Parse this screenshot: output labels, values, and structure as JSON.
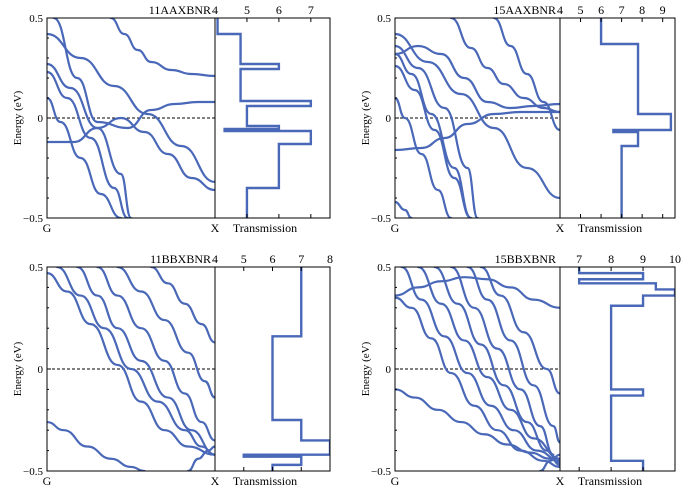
{
  "figure": {
    "line_color": "#4a68b8",
    "axis_color": "#000000",
    "fermi_line_color": "#000000"
  },
  "chart_data": [
    {
      "type": "line",
      "title": "11AAXBNR",
      "ylabel": "Energy (eV)",
      "ylim": [
        -0.5,
        0.5
      ],
      "yticks": [
        "0.5",
        "0",
        "−0.5"
      ],
      "fermi_level": 0,
      "band": {
        "x_start_label": "G",
        "x_end_label": "X",
        "xlim": [
          0,
          1
        ],
        "series": [
          {
            "x": [
              0,
              0.2,
              0.4,
              0.6,
              0.8,
              1
            ],
            "y": [
              0.42,
              0.3,
              0.16,
              0.02,
              -0.14,
              -0.32
            ]
          },
          {
            "x": [
              0.04,
              0.18,
              0.3,
              0.48,
              0.62,
              0.76,
              0.9,
              1
            ],
            "y": [
              0.5,
              0.2,
              -0.02,
              -0.05,
              0.04,
              0.07,
              0.08,
              0.08
            ]
          },
          {
            "x": [
              0.0,
              0.16,
              0.3,
              0.44,
              0.58,
              0.72,
              0.86,
              1
            ],
            "y": [
              -0.12,
              -0.12,
              -0.05,
              0.0,
              -0.07,
              -0.18,
              -0.3,
              -0.36
            ]
          },
          {
            "x": [
              0,
              0.14,
              0.3,
              0.44,
              0.5
            ],
            "y": [
              0.27,
              0.15,
              -0.05,
              -0.28,
              -0.5
            ]
          },
          {
            "x": [
              0,
              0.12,
              0.26,
              0.4,
              0.48
            ],
            "y": [
              0.23,
              0.1,
              -0.1,
              -0.35,
              -0.5
            ]
          },
          {
            "x": [
              0,
              0.08,
              0.2,
              0.32,
              0.44
            ],
            "y": [
              0.1,
              -0.02,
              -0.2,
              -0.38,
              -0.5
            ]
          },
          {
            "x": [
              0.38,
              0.46,
              0.54,
              0.62,
              0.74,
              0.86,
              1
            ],
            "y": [
              0.5,
              0.42,
              0.34,
              0.28,
              0.24,
              0.22,
              0.21
            ]
          }
        ]
      },
      "transmission": {
        "xlabel": "Transmission",
        "xlim": [
          4,
          7.6
        ],
        "xticks": [
          4,
          5,
          6,
          7
        ],
        "steps": [
          {
            "from": 0.5,
            "to": 0.42,
            "value": 4.08
          },
          {
            "from": 0.42,
            "to": 0.27,
            "value": 4.8
          },
          {
            "from": 0.27,
            "to": 0.245,
            "value": 6.0
          },
          {
            "from": 0.245,
            "to": 0.085,
            "value": 4.8
          },
          {
            "from": 0.085,
            "to": 0.06,
            "value": 7.0
          },
          {
            "from": 0.06,
            "to": -0.04,
            "value": 5.0
          },
          {
            "from": -0.04,
            "to": -0.055,
            "value": 6.0
          },
          {
            "from": -0.055,
            "to": -0.065,
            "value": 4.3
          },
          {
            "from": -0.065,
            "to": -0.13,
            "value": 7.0
          },
          {
            "from": -0.13,
            "to": -0.35,
            "value": 6.0
          },
          {
            "from": -0.35,
            "to": -0.5,
            "value": 5.0
          }
        ]
      }
    },
    {
      "type": "line",
      "title": "15AAXBNR",
      "ylabel": "Energy (eV)",
      "ylim": [
        -0.5,
        0.5
      ],
      "yticks": [
        "0.5",
        "0",
        "−0.5"
      ],
      "fermi_level": 0,
      "band": {
        "x_start_label": "G",
        "x_end_label": "X",
        "xlim": [
          0,
          1
        ],
        "series": [
          {
            "x": [
              0,
              0.2,
              0.4,
              0.6,
              0.8,
              1
            ],
            "y": [
              0.42,
              0.28,
              0.12,
              -0.05,
              -0.25,
              -0.4
            ]
          },
          {
            "x": [
              0.0,
              0.14,
              0.28,
              0.42,
              0.56,
              0.7,
              0.84,
              1
            ],
            "y": [
              0.32,
              0.36,
              0.32,
              0.2,
              0.08,
              0.05,
              0.06,
              0.07
            ]
          },
          {
            "x": [
              0.0,
              0.16,
              0.3,
              0.44,
              0.6,
              0.76,
              0.9,
              1
            ],
            "y": [
              -0.16,
              -0.15,
              -0.1,
              -0.03,
              0.02,
              0.03,
              0.03,
              0.03
            ]
          },
          {
            "x": [
              0,
              0.14,
              0.3,
              0.44,
              0.5
            ],
            "y": [
              0.36,
              0.25,
              0.05,
              -0.25,
              -0.5
            ]
          },
          {
            "x": [
              0,
              0.1,
              0.22,
              0.36,
              0.46
            ],
            "y": [
              0.32,
              0.22,
              0.02,
              -0.25,
              -0.5
            ]
          },
          {
            "x": [
              0,
              0.12,
              0.24,
              0.36,
              0.46
            ],
            "y": [
              0.26,
              0.14,
              -0.06,
              -0.3,
              -0.5
            ]
          },
          {
            "x": [
              0,
              0.06,
              0.16,
              0.26,
              0.34
            ],
            "y": [
              0.1,
              0.0,
              -0.18,
              -0.36,
              -0.5
            ]
          },
          {
            "x": [
              0.34,
              0.46,
              0.56,
              0.66,
              0.78,
              0.9,
              1
            ],
            "y": [
              0.5,
              0.35,
              0.25,
              0.17,
              0.1,
              0.05,
              0.03
            ]
          },
          {
            "x": [
              0.6,
              0.7,
              0.8,
              0.9,
              1
            ],
            "y": [
              0.5,
              0.36,
              0.22,
              0.08,
              -0.06
            ]
          },
          {
            "x": [
              0,
              0.06,
              0.1
            ],
            "y": [
              -0.42,
              -0.46,
              -0.5
            ]
          }
        ]
      },
      "transmission": {
        "xlabel": "Transmission",
        "xlim": [
          4,
          9.6
        ],
        "xticks": [
          4,
          5,
          6,
          7,
          8,
          9
        ],
        "steps": [
          {
            "from": 0.5,
            "to": 0.37,
            "value": 6.0
          },
          {
            "from": 0.37,
            "to": 0.06,
            "value": 7.8
          },
          {
            "from": 0.06,
            "to": 0.02,
            "value": 7.8
          },
          {
            "from": 0.02,
            "to": -0.02,
            "value": 9.4
          },
          {
            "from": -0.02,
            "to": -0.06,
            "value": 9.4
          },
          {
            "from": -0.06,
            "to": -0.07,
            "value": 6.6
          },
          {
            "from": -0.07,
            "to": -0.14,
            "value": 7.8
          },
          {
            "from": -0.14,
            "to": -0.5,
            "value": 7.0
          }
        ]
      }
    },
    {
      "type": "line",
      "title": "11BBXBNR",
      "ylabel": "Energy (eV)",
      "ylim": [
        -0.5,
        0.5
      ],
      "yticks": [
        "0.5",
        "0",
        "−0.5"
      ],
      "fermi_level": 0,
      "band": {
        "x_start_label": "G",
        "x_end_label": "X",
        "xlim": [
          0,
          1
        ],
        "series": [
          {
            "x": [
              0,
              0.12,
              0.26,
              0.42,
              0.56,
              0.7,
              0.84,
              1
            ],
            "y": [
              0.47,
              0.38,
              0.22,
              0.02,
              -0.16,
              -0.3,
              -0.38,
              -0.42
            ]
          },
          {
            "x": [
              0.06,
              0.2,
              0.34,
              0.5,
              0.66,
              0.82,
              0.92,
              1
            ],
            "y": [
              0.5,
              0.36,
              0.2,
              0.0,
              -0.16,
              -0.3,
              -0.38,
              -0.42
            ]
          },
          {
            "x": [
              0.18,
              0.3,
              0.42,
              0.56,
              0.72,
              0.86,
              1
            ],
            "y": [
              0.5,
              0.36,
              0.2,
              0.04,
              -0.14,
              -0.3,
              -0.42
            ]
          },
          {
            "x": [
              0.3,
              0.42,
              0.56,
              0.7,
              0.82,
              0.92,
              1
            ],
            "y": [
              0.5,
              0.36,
              0.2,
              0.04,
              -0.12,
              -0.26,
              -0.35
            ]
          },
          {
            "x": [
              0.42,
              0.56,
              0.7,
              0.84,
              0.94,
              1
            ],
            "y": [
              0.5,
              0.38,
              0.24,
              0.08,
              -0.06,
              -0.14
            ]
          },
          {
            "x": [
              0.62,
              0.72,
              0.82,
              0.92,
              1
            ],
            "y": [
              0.5,
              0.42,
              0.32,
              0.22,
              0.13
            ]
          },
          {
            "x": [
              0,
              0.1,
              0.24,
              0.38,
              0.5,
              0.58
            ],
            "y": [
              -0.26,
              -0.3,
              -0.38,
              -0.44,
              -0.48,
              -0.5
            ]
          },
          {
            "x": [
              0.84,
              0.9,
              0.96,
              1
            ],
            "y": [
              -0.5,
              -0.44,
              -0.4,
              -0.38
            ]
          }
        ]
      },
      "transmission": {
        "xlabel": "Transmission",
        "xlim": [
          4,
          8
        ],
        "xticks": [
          4,
          5,
          6,
          7,
          8
        ],
        "steps": [
          {
            "from": 0.5,
            "to": 0.49,
            "value": 7.0
          },
          {
            "from": 0.49,
            "to": 0.16,
            "value": 7.0
          },
          {
            "from": 0.16,
            "to": -0.25,
            "value": 6.0
          },
          {
            "from": -0.25,
            "to": -0.35,
            "value": 7.0
          },
          {
            "from": -0.35,
            "to": -0.42,
            "value": 8.0
          },
          {
            "from": -0.42,
            "to": -0.43,
            "value": 5.0
          },
          {
            "from": -0.43,
            "to": -0.47,
            "value": 7.0
          },
          {
            "from": -0.47,
            "to": -0.5,
            "value": 6.0
          }
        ]
      }
    },
    {
      "type": "line",
      "title": "15BBXBNR",
      "ylabel": "Energy (eV)",
      "ylim": [
        -0.5,
        0.5
      ],
      "yticks": [
        "0.5",
        "0",
        "−0.5"
      ],
      "fermi_level": 0,
      "band": {
        "x_start_label": "G",
        "x_end_label": "X",
        "xlim": [
          0,
          1
        ],
        "series": [
          {
            "x": [
              0,
              0.14,
              0.28,
              0.42,
              0.56,
              0.7,
              0.84,
              1
            ],
            "y": [
              0.36,
              0.4,
              0.43,
              0.45,
              0.44,
              0.4,
              0.34,
              0.3
            ]
          },
          {
            "x": [
              0,
              0.1,
              0.22,
              0.34,
              0.48,
              0.62,
              0.76,
              0.9,
              1
            ],
            "y": [
              0.35,
              0.3,
              0.15,
              -0.02,
              -0.18,
              -0.3,
              -0.4,
              -0.45,
              -0.48
            ]
          },
          {
            "x": [
              0.04,
              0.16,
              0.3,
              0.44,
              0.58,
              0.72,
              0.86,
              1
            ],
            "y": [
              0.5,
              0.34,
              0.16,
              -0.02,
              -0.18,
              -0.3,
              -0.4,
              -0.45
            ]
          },
          {
            "x": [
              0.14,
              0.28,
              0.42,
              0.56,
              0.7,
              0.84,
              1
            ],
            "y": [
              0.5,
              0.32,
              0.14,
              -0.04,
              -0.2,
              -0.34,
              -0.44
            ]
          },
          {
            "x": [
              0.24,
              0.38,
              0.52,
              0.66,
              0.8,
              0.92,
              1
            ],
            "y": [
              0.5,
              0.32,
              0.12,
              -0.08,
              -0.26,
              -0.4,
              -0.47
            ]
          },
          {
            "x": [
              0.34,
              0.48,
              0.62,
              0.76,
              0.88,
              0.96
            ],
            "y": [
              0.5,
              0.3,
              0.1,
              -0.1,
              -0.28,
              -0.42
            ]
          },
          {
            "x": [
              0.44,
              0.56,
              0.7,
              0.84,
              0.96,
              1
            ],
            "y": [
              0.5,
              0.34,
              0.14,
              -0.08,
              -0.28,
              -0.36
            ]
          },
          {
            "x": [
              0.52,
              0.64,
              0.78,
              0.92,
              1
            ],
            "y": [
              0.5,
              0.36,
              0.18,
              0.0,
              -0.12
            ]
          },
          {
            "x": [
              0,
              0.12,
              0.26,
              0.4,
              0.54,
              0.68,
              0.82,
              0.94,
              1
            ],
            "y": [
              -0.1,
              -0.14,
              -0.2,
              -0.26,
              -0.32,
              -0.37,
              -0.41,
              -0.44,
              -0.46
            ]
          },
          {
            "x": [
              0.88,
              0.94,
              1
            ],
            "y": [
              -0.5,
              -0.45,
              -0.42
            ]
          }
        ]
      },
      "transmission": {
        "xlabel": "Transmission",
        "xlim": [
          6.4,
          10
        ],
        "xticks": [
          7,
          8,
          9,
          10
        ],
        "steps": [
          {
            "from": 0.5,
            "to": 0.47,
            "value": 7.0
          },
          {
            "from": 0.47,
            "to": 0.44,
            "value": 9.0
          },
          {
            "from": 0.44,
            "to": 0.42,
            "value": 7.0
          },
          {
            "from": 0.42,
            "to": 0.39,
            "value": 9.4
          },
          {
            "from": 0.39,
            "to": 0.36,
            "value": 10.0
          },
          {
            "from": 0.36,
            "to": 0.31,
            "value": 9.0
          },
          {
            "from": 0.31,
            "to": -0.1,
            "value": 8.0
          },
          {
            "from": -0.1,
            "to": -0.13,
            "value": 9.0
          },
          {
            "from": -0.13,
            "to": -0.45,
            "value": 8.0
          },
          {
            "from": -0.45,
            "to": -0.5,
            "value": 9.0
          }
        ]
      }
    }
  ]
}
